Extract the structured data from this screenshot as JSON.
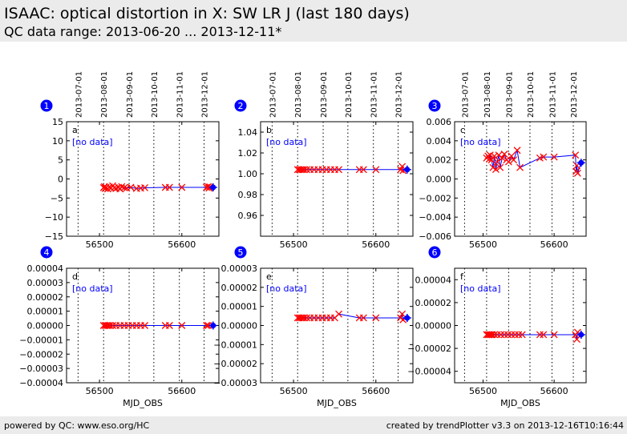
{
  "header": {
    "title": "ISAAC: optical distortion in X: SW LR J (last 180 days)",
    "subtitle": "QC data range: 2013-06-20 ... 2013-12-11*"
  },
  "footer": {
    "left": "powered by QC: www.eso.org/HC",
    "right": "created by trendPlotter v3.3 on 2013-12-16T10:16:44"
  },
  "colors": {
    "marker": "#ff0000",
    "line": "#0000ff",
    "latest": "#0000ff",
    "badge": "#0000ff"
  },
  "date_axis": {
    "labels": [
      "2013-07-01",
      "2013-08-01",
      "2013-09-01",
      "2013-10-01",
      "2013-11-01",
      "2013-12-01"
    ],
    "mjd": [
      56474,
      56505,
      56536,
      56566,
      56597,
      56627
    ]
  },
  "chart_data": [
    {
      "type": "scatter",
      "badge": "1",
      "letter": "a",
      "note": "[no data]",
      "xlim": [
        56460,
        56645
      ],
      "ylim": [
        -15,
        15
      ],
      "yticks": [
        "15",
        "10",
        "5",
        "0",
        "−5",
        "−10",
        "−15"
      ],
      "ytick_values": [
        15,
        10,
        5,
        0,
        -5,
        -10,
        -15
      ],
      "xticks": [
        "56500",
        "56600"
      ],
      "xtick_values": [
        56500,
        56600
      ],
      "xlabel": "",
      "x": [
        56505,
        56506,
        56507,
        56508,
        56510,
        56512,
        56514,
        56516,
        56518,
        56520,
        56523,
        56525,
        56527,
        56530,
        56533,
        56538,
        56545,
        56550,
        56555,
        56580,
        56585,
        56600,
        56630,
        56632,
        56633,
        56634
      ],
      "y": [
        -2.3,
        -2.0,
        -2.5,
        -2.2,
        -2.6,
        -2.1,
        -2.4,
        -1.8,
        -2.3,
        -2.5,
        -2.2,
        -2.6,
        -2.0,
        -2.3,
        -2.4,
        -2.2,
        -2.5,
        -2.4,
        -2.3,
        -2.2,
        -2.2,
        -2.2,
        -2.2,
        -2.0,
        -2.4,
        -2.1
      ],
      "latest": [
        56638,
        -2.2
      ]
    },
    {
      "type": "scatter",
      "badge": "2",
      "letter": "b",
      "note": "[no data]",
      "xlim": [
        56460,
        56645
      ],
      "ylim": [
        0.94,
        1.05
      ],
      "yticks": [
        "1.04",
        "1.02",
        "1.00",
        "0.98",
        "0.96"
      ],
      "ytick_values": [
        1.04,
        1.02,
        1.0,
        0.98,
        0.96
      ],
      "xticks": [
        "56500",
        "56600"
      ],
      "xtick_values": [
        56500,
        56600
      ],
      "xlabel": "",
      "x": [
        56505,
        56507,
        56509,
        56511,
        56513,
        56516,
        56520,
        56525,
        56530,
        56535,
        56540,
        56545,
        56550,
        56555,
        56580,
        56585,
        56600,
        56630,
        56632,
        56633
      ],
      "y": [
        1.004,
        1.004,
        1.004,
        1.004,
        1.004,
        1.004,
        1.004,
        1.004,
        1.004,
        1.004,
        1.004,
        1.004,
        1.004,
        1.004,
        1.004,
        1.004,
        1.004,
        1.004,
        1.007,
        1.003
      ],
      "latest": [
        56638,
        1.004
      ]
    },
    {
      "type": "scatter",
      "badge": "3",
      "letter": "c",
      "note": "[no data]",
      "xlim": [
        56460,
        56645
      ],
      "ylim": [
        -0.006,
        0.006
      ],
      "yticks": [
        "0.006",
        "0.004",
        "0.002",
        "0.000",
        "−0.002",
        "−0.004",
        "−0.006"
      ],
      "ytick_values": [
        0.006,
        0.004,
        0.002,
        0.0,
        -0.002,
        -0.004,
        -0.006
      ],
      "xticks": [
        "56500",
        "56600"
      ],
      "xtick_values": [
        56500,
        56600
      ],
      "xlabel": "",
      "x": [
        56505,
        56507,
        56509,
        56510,
        56512,
        56514,
        56516,
        56518,
        56520,
        56522,
        56524,
        56527,
        56530,
        56533,
        56536,
        56540,
        56543,
        56548,
        56552,
        56580,
        56585,
        56600,
        56630,
        56631,
        56632,
        56633
      ],
      "y": [
        0.0022,
        0.0024,
        0.0021,
        0.0025,
        0.002,
        0.0012,
        0.0024,
        0.001,
        0.0018,
        0.0025,
        0.0012,
        0.0022,
        0.0026,
        0.002,
        0.0018,
        0.0024,
        0.002,
        0.003,
        0.0012,
        0.0022,
        0.0023,
        0.0023,
        0.0025,
        0.0008,
        0.0014,
        0.0006
      ],
      "latest": [
        56638,
        0.0017
      ]
    },
    {
      "type": "scatter",
      "badge": "4",
      "letter": "d",
      "note": "[no data]",
      "xlim": [
        56460,
        56645
      ],
      "ylim": [
        -4e-05,
        4e-05
      ],
      "yticks": [
        "0.00004",
        "0.00003",
        "0.00002",
        "0.00001",
        "0.00000",
        "−0.00001",
        "−0.00002",
        "−0.00003",
        "−0.00004"
      ],
      "ytick_values": [
        4e-05,
        3e-05,
        2e-05,
        1e-05,
        0.0,
        -1e-05,
        -2e-05,
        -3e-05,
        -4e-05
      ],
      "xticks": [
        "56500",
        "56600"
      ],
      "xtick_values": [
        56500,
        56600
      ],
      "xlabel": "MJD_OBS",
      "x": [
        56505,
        56507,
        56509,
        56511,
        56513,
        56516,
        56520,
        56525,
        56530,
        56535,
        56540,
        56545,
        56550,
        56555,
        56580,
        56585,
        56600,
        56630,
        56632
      ],
      "y": [
        0,
        0,
        0,
        0,
        0,
        0,
        0,
        0,
        0,
        0,
        0,
        0,
        0,
        0,
        0,
        0,
        0,
        0,
        0
      ],
      "latest": [
        56638,
        0
      ]
    },
    {
      "type": "scatter",
      "badge": "5",
      "letter": "e",
      "note": "[no data]",
      "xlim": [
        56460,
        56645
      ],
      "ylim": [
        -3e-05,
        3e-05
      ],
      "yticks": [
        "0.00003",
        "0.00002",
        "0.00001",
        "0.00000",
        "−0.00001",
        "−0.00002",
        "−0.00003"
      ],
      "ytick_values": [
        3e-05,
        2e-05,
        1e-05,
        0.0,
        -1e-05,
        -2e-05,
        -3e-05
      ],
      "xticks": [
        "56500",
        "56600"
      ],
      "xtick_values": [
        56500,
        56600
      ],
      "xlabel": "MJD_OBS",
      "x": [
        56505,
        56507,
        56509,
        56511,
        56513,
        56516,
        56520,
        56525,
        56530,
        56535,
        56540,
        56545,
        56550,
        56555,
        56580,
        56585,
        56600,
        56630,
        56632,
        56633
      ],
      "y": [
        4e-06,
        4e-06,
        4e-06,
        4e-06,
        4e-06,
        4e-06,
        4e-06,
        4e-06,
        4e-06,
        4e-06,
        4e-06,
        4e-06,
        4e-06,
        6e-06,
        4e-06,
        4e-06,
        4e-06,
        4e-06,
        6e-06,
        3e-06
      ],
      "latest": [
        56638,
        4e-06
      ]
    },
    {
      "type": "scatter",
      "badge": "6",
      "letter": "f",
      "note": "[no data]",
      "xlim": [
        56460,
        56645
      ],
      "ylim": [
        -5e-05,
        5e-05
      ],
      "yticks": [
        "0.00004",
        "0.00002",
        "0.00000",
        "−0.00002",
        "−0.00004"
      ],
      "ytick_values": [
        4e-05,
        2e-05,
        0.0,
        -2e-05,
        -4e-05
      ],
      "xticks": [
        "56500",
        "56600"
      ],
      "xtick_values": [
        56500,
        56600
      ],
      "xlabel": "MJD_OBS",
      "x": [
        56505,
        56507,
        56509,
        56511,
        56513,
        56516,
        56520,
        56525,
        56530,
        56535,
        56540,
        56545,
        56550,
        56555,
        56580,
        56585,
        56600,
        56630,
        56632,
        56633
      ],
      "y": [
        -8e-06,
        -8e-06,
        -8e-06,
        -8e-06,
        -8e-06,
        -8e-06,
        -8e-06,
        -8e-06,
        -8e-06,
        -8e-06,
        -8e-06,
        -8e-06,
        -8e-06,
        -8e-06,
        -8e-06,
        -8e-06,
        -8e-06,
        -8e-06,
        -1.2e-05,
        -6e-06
      ],
      "latest": [
        56638,
        -8e-06
      ]
    }
  ]
}
